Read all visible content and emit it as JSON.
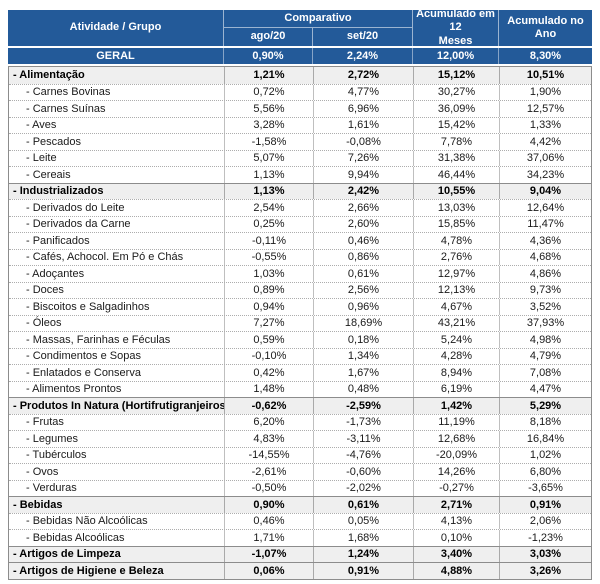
{
  "colors": {
    "header_blue": "#235A99",
    "header_text": "#FFFFFF",
    "group_row_bg": "#EFEFEF",
    "item_row_bg": "#FFFFFF",
    "grid_line": "#BFBFBF",
    "outer_border": "#8C8C8C"
  },
  "header": {
    "activity": "Atividade / Grupo",
    "comparative": "Comparativo",
    "aug": "ago/20",
    "sep": "set/20",
    "accum12": "Acumulado em 12\nMeses",
    "accum_year": "Acumulado no\nAno"
  },
  "chart_data": {
    "type": "table",
    "title": "Atividade / Grupo — Comparativo ago/20 e set/20, Acumulado em 12 Meses e Acumulado no Ano",
    "columns": [
      "Atividade / Grupo",
      "Comparativo ago/20",
      "Comparativo set/20",
      "Acumulado em 12 Meses",
      "Acumulado no Ano"
    ],
    "rows": [
      {
        "label": "GERAL",
        "level": "total",
        "values": [
          "0,90%",
          "2,24%",
          "12,00%",
          "8,30%"
        ]
      },
      {
        "label": "- Alimentação",
        "level": "group",
        "values": [
          "1,21%",
          "2,72%",
          "15,12%",
          "10,51%"
        ]
      },
      {
        "label": "- Carnes Bovinas",
        "level": "item",
        "values": [
          "0,72%",
          "4,77%",
          "30,27%",
          "1,90%"
        ]
      },
      {
        "label": "- Carnes Suínas",
        "level": "item",
        "values": [
          "5,56%",
          "6,96%",
          "36,09%",
          "12,57%"
        ]
      },
      {
        "label": "- Aves",
        "level": "item",
        "values": [
          "3,28%",
          "1,61%",
          "15,42%",
          "1,33%"
        ]
      },
      {
        "label": "- Pescados",
        "level": "item",
        "values": [
          "-1,58%",
          "-0,08%",
          "7,78%",
          "4,42%"
        ]
      },
      {
        "label": "- Leite",
        "level": "item",
        "values": [
          "5,07%",
          "7,26%",
          "31,38%",
          "37,06%"
        ]
      },
      {
        "label": "- Cereais",
        "level": "item",
        "values": [
          "1,13%",
          "9,94%",
          "46,44%",
          "34,23%"
        ]
      },
      {
        "label": "- Industrializados",
        "level": "group",
        "values": [
          "1,13%",
          "2,42%",
          "10,55%",
          "9,04%"
        ]
      },
      {
        "label": "- Derivados do Leite",
        "level": "item",
        "values": [
          "2,54%",
          "2,66%",
          "13,03%",
          "12,64%"
        ]
      },
      {
        "label": "- Derivados da Carne",
        "level": "item",
        "values": [
          "0,25%",
          "2,60%",
          "15,85%",
          "11,47%"
        ]
      },
      {
        "label": "- Panificados",
        "level": "item",
        "values": [
          "-0,11%",
          "0,46%",
          "4,78%",
          "4,36%"
        ]
      },
      {
        "label": "- Cafés, Achocol. Em Pó e Chás",
        "level": "item",
        "values": [
          "-0,55%",
          "0,86%",
          "2,76%",
          "4,68%"
        ]
      },
      {
        "label": "- Adoçantes",
        "level": "item",
        "values": [
          "1,03%",
          "0,61%",
          "12,97%",
          "4,86%"
        ]
      },
      {
        "label": "- Doces",
        "level": "item",
        "values": [
          "0,89%",
          "2,56%",
          "12,13%",
          "9,73%"
        ]
      },
      {
        "label": "- Biscoitos e Salgadinhos",
        "level": "item",
        "values": [
          "0,94%",
          "0,96%",
          "4,67%",
          "3,52%"
        ]
      },
      {
        "label": "- Óleos",
        "level": "item",
        "values": [
          "7,27%",
          "18,69%",
          "43,21%",
          "37,93%"
        ]
      },
      {
        "label": "- Massas, Farinhas e Féculas",
        "level": "item",
        "values": [
          "0,59%",
          "0,18%",
          "5,24%",
          "4,98%"
        ]
      },
      {
        "label": "- Condimentos e Sopas",
        "level": "item",
        "values": [
          "-0,10%",
          "1,34%",
          "4,28%",
          "4,79%"
        ]
      },
      {
        "label": "- Enlatados e Conserva",
        "level": "item",
        "values": [
          "0,42%",
          "1,67%",
          "8,94%",
          "7,08%"
        ]
      },
      {
        "label": "- Alimentos Prontos",
        "level": "item",
        "values": [
          "1,48%",
          "0,48%",
          "6,19%",
          "4,47%"
        ]
      },
      {
        "label": "- Produtos In Natura (Hortifrutigranjeiros)",
        "level": "group",
        "values": [
          "-0,62%",
          "-2,59%",
          "1,42%",
          "5,29%"
        ]
      },
      {
        "label": "- Frutas",
        "level": "item",
        "values": [
          "6,20%",
          "-1,73%",
          "11,19%",
          "8,18%"
        ]
      },
      {
        "label": "- Legumes",
        "level": "item",
        "values": [
          "4,83%",
          "-3,11%",
          "12,68%",
          "16,84%"
        ]
      },
      {
        "label": "- Tubérculos",
        "level": "item",
        "values": [
          "-14,55%",
          "-4,76%",
          "-20,09%",
          "1,02%"
        ]
      },
      {
        "label": "- Ovos",
        "level": "item",
        "values": [
          "-2,61%",
          "-0,60%",
          "14,26%",
          "6,80%"
        ]
      },
      {
        "label": "- Verduras",
        "level": "item",
        "values": [
          "-0,50%",
          "-2,02%",
          "-0,27%",
          "-3,65%"
        ]
      },
      {
        "label": "- Bebidas",
        "level": "group",
        "values": [
          "0,90%",
          "0,61%",
          "2,71%",
          "0,91%"
        ]
      },
      {
        "label": "- Bebidas Não Alcoólicas",
        "level": "item",
        "values": [
          "0,46%",
          "0,05%",
          "4,13%",
          "2,06%"
        ]
      },
      {
        "label": "- Bebidas Alcoólicas",
        "level": "item",
        "values": [
          "1,71%",
          "1,68%",
          "0,10%",
          "-1,23%"
        ]
      },
      {
        "label": "- Artigos de Limpeza",
        "level": "group",
        "values": [
          "-1,07%",
          "1,24%",
          "3,40%",
          "3,03%"
        ]
      },
      {
        "label": "- Artigos de Higiene e Beleza",
        "level": "group",
        "values": [
          "0,06%",
          "0,91%",
          "4,88%",
          "3,26%"
        ]
      }
    ]
  }
}
